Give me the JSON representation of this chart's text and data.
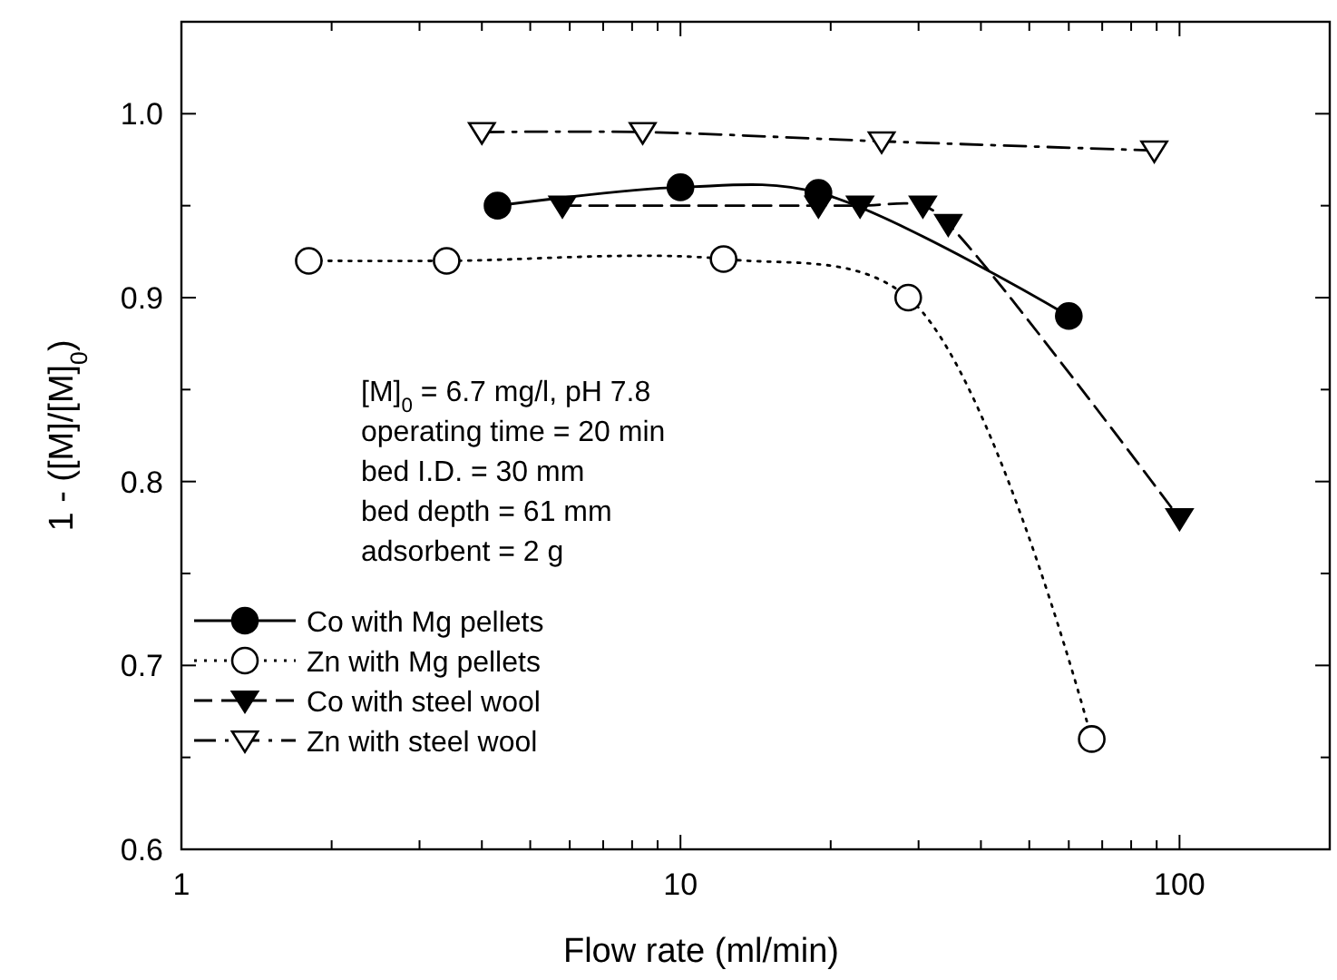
{
  "chart_data": {
    "type": "line",
    "xlabel": "Flow rate (ml/min)",
    "ylabel": "1 - ([M]/[M]$_{0}$)",
    "log": "x",
    "xlim": [
      1,
      200
    ],
    "ylim": [
      0.6,
      1.05
    ],
    "xticks": [
      1,
      {
        "value": 2,
        "label": null
      },
      {
        "value": 3,
        "label": null
      },
      {
        "value": 4,
        "label": null
      },
      {
        "value": 5,
        "label": null
      },
      {
        "value": 6,
        "label": null
      },
      {
        "value": 7,
        "label": null
      },
      {
        "value": 8,
        "label": null
      },
      {
        "value": 9,
        "label": null
      },
      10,
      {
        "value": 20,
        "label": null
      },
      {
        "value": 30,
        "label": null
      },
      {
        "value": 40,
        "label": null
      },
      {
        "value": 50,
        "label": null
      },
      {
        "value": 60,
        "label": null
      },
      {
        "value": 70,
        "label": null
      },
      {
        "value": 80,
        "label": null
      },
      {
        "value": 90,
        "label": null
      },
      100
    ],
    "yticks": [
      {
        "value": 0.6,
        "label": "0.6"
      },
      {
        "value": 0.65,
        "label": null
      },
      {
        "value": 0.7,
        "label": "0.7"
      },
      {
        "value": 0.75,
        "label": null
      },
      {
        "value": 0.8,
        "label": "0.8"
      },
      {
        "value": 0.85,
        "label": null
      },
      {
        "value": 0.9,
        "label": "0.9"
      },
      {
        "value": 0.95,
        "label": null
      },
      {
        "value": 1.0,
        "label": "1.0"
      }
    ],
    "grid": false,
    "legend": "bottom left",
    "annotations": [
      "[M]$_{0}$ = 6.7 mg/l, pH 7.8",
      "operating time = 20 min",
      "bed I.D. = 30 mm",
      "bed depth = 61 mm",
      "adsorbent = 2 g"
    ],
    "series": [
      {
        "name": "Co with Mg pellets",
        "color": "#000000",
        "marker": "circle",
        "line_style": "solid",
        "x": [
          4.3,
          10,
          18.9,
          60
        ],
        "values": [
          0.95,
          0.96,
          0.957,
          0.89
        ]
      },
      {
        "name": "Zn with Mg pellets",
        "color": "#000000",
        "marker": "circle",
        "line_style": "dotted",
        "x": [
          1.8,
          3.4,
          12.2,
          28.6,
          66.7
        ],
        "values": [
          0.92,
          0.92,
          0.921,
          0.9,
          0.66
        ]
      },
      {
        "name": "Co with steel wool",
        "color": "#000000",
        "marker": "triangle",
        "line_style": "dashed",
        "x": [
          5.8,
          18.9,
          22.9,
          30.6,
          34.4,
          100
        ],
        "values": [
          0.95,
          0.95,
          0.95,
          0.95,
          0.94,
          0.78
        ]
      },
      {
        "name": "Zn with steel wool",
        "color": "#000000",
        "marker": "triangle",
        "line_style": "dashdot",
        "x": [
          4,
          8.4,
          25.3,
          89
        ],
        "values": [
          0.99,
          0.99,
          0.985,
          0.98
        ]
      }
    ]
  }
}
